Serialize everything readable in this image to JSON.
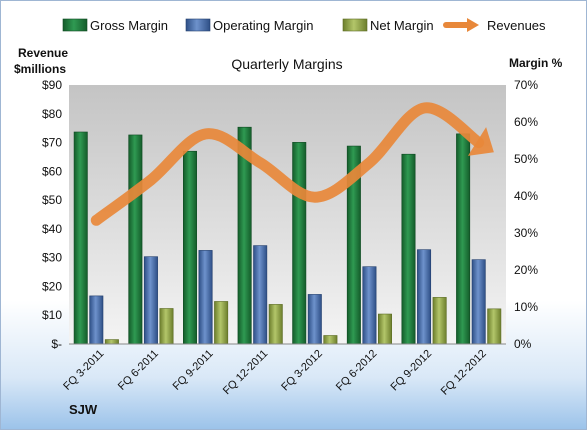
{
  "chart_data": {
    "type": "bar",
    "title": "Quarterly Margins",
    "categories": [
      "FQ 3-2011",
      "FQ 6-2011",
      "FQ 9-2011",
      "FQ 12-2011",
      "FQ 3-2012",
      "FQ 6-2012",
      "FQ 9-2012",
      "FQ 12-2012"
    ],
    "series": [
      {
        "name": "Gross Margin",
        "type": "bar",
        "axis": "right",
        "values": [
          57.3,
          56.5,
          52.1,
          58.6,
          54.5,
          53.5,
          51.3,
          56.8
        ]
      },
      {
        "name": "Operating Margin",
        "type": "bar",
        "axis": "right",
        "values": [
          13.0,
          23.6,
          25.3,
          26.6,
          13.4,
          20.9,
          25.5,
          22.8
        ]
      },
      {
        "name": "Net Margin",
        "type": "bar",
        "axis": "right",
        "values": [
          1.2,
          9.6,
          11.5,
          10.7,
          2.3,
          8.1,
          12.6,
          9.5
        ]
      },
      {
        "name": "Revenues",
        "type": "line",
        "axis": "left",
        "values": [
          43,
          57,
          73,
          63,
          51,
          63,
          82,
          70
        ]
      }
    ],
    "y_left": {
      "label_line1": "Revenue",
      "label_line2": "$millions",
      "ticks": [
        "$-",
        "$10",
        "$20",
        "$30",
        "$40",
        "$50",
        "$60",
        "$70",
        "$80",
        "$90"
      ],
      "ylim": [
        0,
        90
      ]
    },
    "y_right": {
      "label": "Margin %",
      "ticks": [
        "0%",
        "10%",
        "20%",
        "30%",
        "40%",
        "50%",
        "60%",
        "70%"
      ],
      "ylim": [
        0,
        70
      ]
    },
    "legend_position": "top",
    "grid": false
  },
  "footer": {
    "ticker": "SJW"
  },
  "colors": {
    "gross_margin": "#1f7a3c",
    "operating_margin": "#4a6fa8",
    "net_margin": "#93a84a",
    "revenues": "#e8883a",
    "plot_background_top": "#c4c4c4",
    "plot_background_bottom": "#f4f4f4"
  }
}
